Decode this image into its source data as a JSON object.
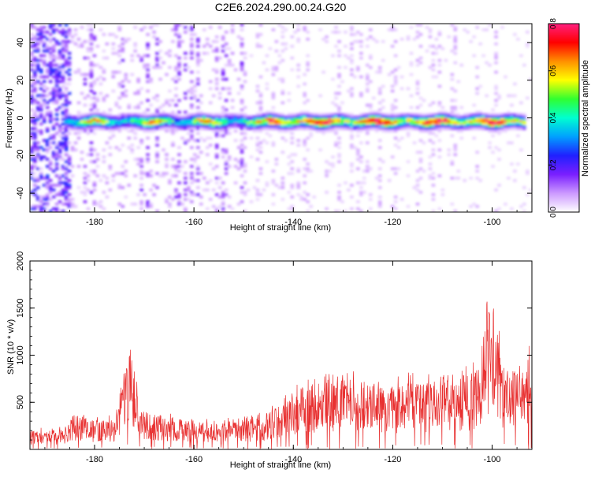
{
  "title": "C2E6.2024.290.00.24.G20",
  "colors": {
    "snr_line": "#e83030",
    "axis": "#000000"
  },
  "colormap_stops": [
    "#ffffff",
    "#cc99ff",
    "#7a1fff",
    "#2020ff",
    "#00a0ff",
    "#00ffd0",
    "#30ff30",
    "#ffff00",
    "#ff9000",
    "#ff0000",
    "#ff2080"
  ],
  "chart_data": [
    {
      "type": "heatmap",
      "title": "C2E6.2024.290.00.24.G20",
      "xlabel": "Height of straight line (km)",
      "ylabel": "Frequency (Hz)",
      "xlim": [
        -193,
        -92
      ],
      "ylim": [
        -50,
        50
      ],
      "xticks": [
        -180,
        -160,
        -140,
        -120,
        -100
      ],
      "yticks": [
        -40,
        -20,
        0,
        20,
        40
      ],
      "ridge": {
        "frequency": -2,
        "x_start": -186,
        "x_end": -93,
        "peak_amplitude": 0.8
      },
      "colorbar": {
        "label": "Normalized spectral amplitude",
        "range": [
          0.0,
          0.8
        ],
        "ticks": [
          0.0,
          0.2,
          0.4,
          0.6,
          0.8
        ]
      }
    },
    {
      "type": "line",
      "xlabel": "Height of straight line (km)",
      "ylabel": "SNR (10 * v/v)",
      "xlim": [
        -193,
        -92
      ],
      "ylim": [
        0,
        2000
      ],
      "xticks": [
        -180,
        -160,
        -140,
        -120,
        -100
      ],
      "yticks": [
        500,
        1000,
        1500,
        2000
      ],
      "series": [
        {
          "color": "#e83030",
          "envelope_x": [
            -193,
            -186,
            -184,
            -180,
            -176,
            -174,
            -172.5,
            -171,
            -168,
            -164,
            -160,
            -156,
            -152,
            -148,
            -145,
            -142,
            -139,
            -136,
            -132,
            -128,
            -124,
            -120,
            -117,
            -114,
            -110,
            -106,
            -103,
            -101,
            -100,
            -98,
            -96,
            -94,
            -92
          ],
          "envelope_y": [
            200,
            210,
            380,
            300,
            320,
            850,
            1100,
            420,
            380,
            340,
            300,
            290,
            300,
            330,
            400,
            500,
            680,
            700,
            720,
            760,
            700,
            650,
            720,
            700,
            740,
            760,
            850,
            1400,
            1650,
            900,
            850,
            900,
            1000
          ]
        }
      ]
    }
  ]
}
